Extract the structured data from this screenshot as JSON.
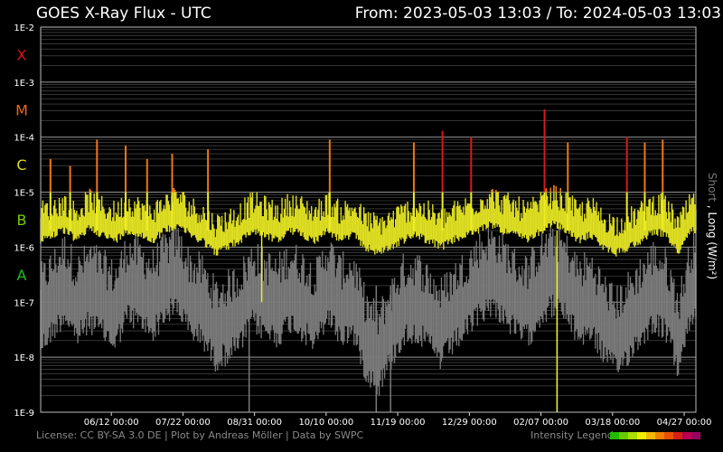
{
  "header": {
    "title": "GOES X-Ray Flux - UTC",
    "range": "From: 2023-05-03 13:03  /  To: 2024-05-03 13:03"
  },
  "footer": {
    "license": "License: CC BY-SA 3.0 DE | Plot by Andreas Möller | Data by SWPC",
    "legend_label": "Intensity Legend",
    "legend_colors": [
      "#22bb00",
      "#66cc00",
      "#aadd00",
      "#eeee00",
      "#f0b800",
      "#f08000",
      "#e85000",
      "#d42010",
      "#b80050",
      "#9a0060"
    ]
  },
  "chart_data": {
    "type": "line",
    "title": "GOES X-Ray Flux - UTC",
    "ylabel_short": "Short",
    "ylabel_sep": " , ",
    "ylabel_long": "Long (W/m²)",
    "y_scale": "log",
    "ylim": [
      1e-09,
      0.01
    ],
    "y_ticks": [
      "1E-2",
      "1E-3",
      "1E-4",
      "1E-5",
      "1E-6",
      "1E-7",
      "1E-8",
      "1E-9"
    ],
    "flare_classes": [
      {
        "label": "X",
        "color": "#dd1111",
        "level": 0.001
      },
      {
        "label": "M",
        "color": "#ee6611",
        "level": 0.0001
      },
      {
        "label": "C",
        "color": "#dddd11",
        "level": 1e-05
      },
      {
        "label": "B",
        "color": "#77cc00",
        "level": 1e-06
      },
      {
        "label": "A",
        "color": "#22bb22",
        "level": 1e-07
      }
    ],
    "x_range": [
      "2023-05-03 13:03",
      "2024-05-03 13:03"
    ],
    "x_ticks": [
      "06/12 00:00",
      "07/22 00:00",
      "08/31 00:00",
      "10/10 00:00",
      "11/19 00:00",
      "12/29 00:00",
      "02/07 00:00",
      "03/18 00:00",
      "04/27 00:00"
    ],
    "x_tick_dates": [
      "2023-06-12",
      "2023-07-22",
      "2023-08-31",
      "2023-10-10",
      "2023-11-19",
      "2023-12-29",
      "2024-02-07",
      "2024-03-18",
      "2024-04-27"
    ],
    "grid": true,
    "series": [
      {
        "name": "Long",
        "color_mode": "flare-class",
        "dates": [
          "2023-05-03",
          "2023-05-10",
          "2023-05-17",
          "2023-05-24",
          "2023-05-31",
          "2023-06-07",
          "2023-06-14",
          "2023-06-21",
          "2023-06-28",
          "2023-07-05",
          "2023-07-12",
          "2023-07-19",
          "2023-07-26",
          "2023-08-02",
          "2023-08-09",
          "2023-08-16",
          "2023-08-23",
          "2023-08-30",
          "2023-09-06",
          "2023-09-13",
          "2023-09-20",
          "2023-09-27",
          "2023-10-04",
          "2023-10-11",
          "2023-10-18",
          "2023-10-25",
          "2023-11-01",
          "2023-11-08",
          "2023-11-15",
          "2023-11-22",
          "2023-11-29",
          "2023-12-06",
          "2023-12-13",
          "2023-12-20",
          "2023-12-27",
          "2024-01-03",
          "2024-01-10",
          "2024-01-17",
          "2024-01-24",
          "2024-01-31",
          "2024-02-07",
          "2024-02-14",
          "2024-02-21",
          "2024-02-28",
          "2024-03-06",
          "2024-03-13",
          "2024-03-20",
          "2024-03-27",
          "2024-04-03",
          "2024-04-10",
          "2024-04-17",
          "2024-04-24",
          "2024-05-01"
        ],
        "values": [
          2e-06,
          2.5e-06,
          3e-06,
          2e-06,
          3.5e-06,
          2.5e-06,
          2e-06,
          3e-06,
          2.5e-06,
          2e-06,
          3e-06,
          4e-06,
          2.5e-06,
          2e-06,
          1.2e-06,
          1.5e-06,
          2e-06,
          3e-06,
          2.5e-06,
          2e-06,
          3e-06,
          2.5e-06,
          2e-06,
          3e-06,
          2e-06,
          2.5e-06,
          1.5e-06,
          1.2e-06,
          1.5e-06,
          2e-06,
          2.5e-06,
          2e-06,
          1.5e-06,
          2e-06,
          2.5e-06,
          3e-06,
          4e-06,
          3e-06,
          2.5e-06,
          2e-06,
          3e-06,
          4e-06,
          3e-06,
          2e-06,
          2.5e-06,
          1.5e-06,
          1.2e-06,
          1.5e-06,
          2e-06,
          3e-06,
          2.5e-06,
          1.2e-06,
          3e-06
        ]
      },
      {
        "name": "Short",
        "color": "#7a7a7a",
        "dates": [
          "2023-05-03",
          "2023-05-10",
          "2023-05-17",
          "2023-05-24",
          "2023-05-31",
          "2023-06-07",
          "2023-06-14",
          "2023-06-21",
          "2023-06-28",
          "2023-07-05",
          "2023-07-12",
          "2023-07-19",
          "2023-07-26",
          "2023-08-02",
          "2023-08-09",
          "2023-08-16",
          "2023-08-23",
          "2023-08-30",
          "2023-09-06",
          "2023-09-13",
          "2023-09-20",
          "2023-09-27",
          "2023-10-04",
          "2023-10-11",
          "2023-10-18",
          "2023-10-25",
          "2023-11-01",
          "2023-11-08",
          "2023-11-15",
          "2023-11-22",
          "2023-11-29",
          "2023-12-06",
          "2023-12-13",
          "2023-12-20",
          "2023-12-27",
          "2024-01-03",
          "2024-01-10",
          "2024-01-17",
          "2024-01-24",
          "2024-01-31",
          "2024-02-07",
          "2024-02-14",
          "2024-02-21",
          "2024-02-28",
          "2024-03-06",
          "2024-03-13",
          "2024-03-20",
          "2024-03-27",
          "2024-04-03",
          "2024-04-10",
          "2024-04-17",
          "2024-04-24",
          "2024-05-01"
        ],
        "values": [
          5e-08,
          1e-07,
          2e-07,
          8e-08,
          1.5e-07,
          1e-07,
          6e-08,
          2e-07,
          1.5e-07,
          1e-07,
          2e-07,
          3e-07,
          1e-07,
          8e-08,
          3e-08,
          4e-08,
          6e-08,
          1.5e-07,
          1e-07,
          8e-08,
          1.5e-07,
          1e-07,
          6e-08,
          2e-07,
          8e-08,
          1e-07,
          2e-08,
          1e-08,
          3e-08,
          8e-08,
          1e-07,
          6e-08,
          3e-08,
          6e-08,
          1e-07,
          2e-07,
          3e-07,
          2e-07,
          1e-07,
          8e-08,
          2e-07,
          3e-07,
          2e-07,
          8e-08,
          1e-07,
          4e-08,
          2e-08,
          4e-08,
          8e-08,
          1.5e-07,
          1e-07,
          2e-08,
          2e-07
        ]
      }
    ],
    "peaks": [
      {
        "date": "2023-05-09",
        "value": 4e-05
      },
      {
        "date": "2023-05-20",
        "value": 3e-05
      },
      {
        "date": "2023-06-04",
        "value": 9e-05
      },
      {
        "date": "2023-06-20",
        "value": 7e-05
      },
      {
        "date": "2023-07-02",
        "value": 4e-05
      },
      {
        "date": "2023-07-16",
        "value": 5e-05
      },
      {
        "date": "2023-08-05",
        "value": 6e-05
      },
      {
        "date": "2023-10-12",
        "value": 9e-05
      },
      {
        "date": "2023-11-28",
        "value": 8e-05
      },
      {
        "date": "2023-12-14",
        "value": 0.00013
      },
      {
        "date": "2023-12-30",
        "value": 0.0001
      },
      {
        "date": "2024-02-09",
        "value": 0.00032
      },
      {
        "date": "2024-02-22",
        "value": 8e-05
      },
      {
        "date": "2024-03-26",
        "value": 0.0001
      },
      {
        "date": "2024-04-05",
        "value": 8e-05
      },
      {
        "date": "2024-04-15",
        "value": 9e-05
      }
    ],
    "dropouts": [
      {
        "date": "2023-08-28",
        "min": 1e-09
      },
      {
        "date": "2023-11-07",
        "min": 1e-09
      },
      {
        "date": "2023-11-15",
        "min": 1e-09
      },
      {
        "date": "2024-02-16",
        "min": 1e-09
      }
    ]
  }
}
